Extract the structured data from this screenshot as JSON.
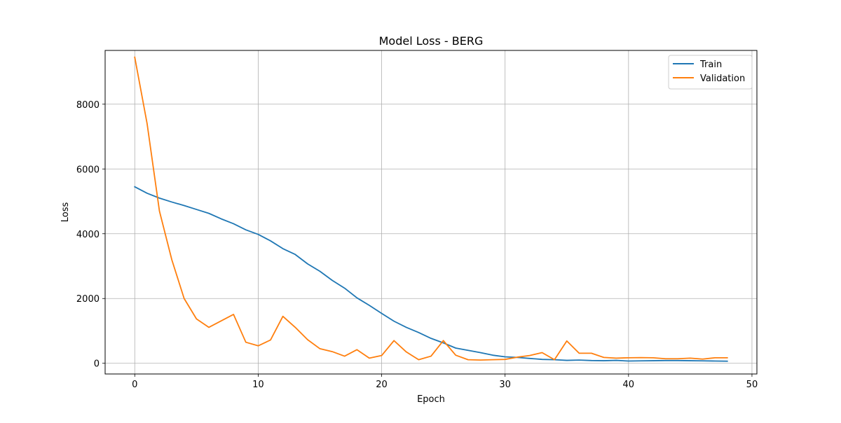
{
  "chart_data": {
    "type": "line",
    "title": "Model Loss - BERG",
    "xlabel": "Epoch",
    "ylabel": "Loss",
    "xlim": [
      -2.4,
      50.4
    ],
    "ylim": [
      -330,
      9660
    ],
    "xticks": [
      0,
      10,
      20,
      30,
      40,
      50
    ],
    "yticks": [
      0,
      2000,
      4000,
      6000,
      8000
    ],
    "grid": true,
    "legend_position": "top-right",
    "series": [
      {
        "name": "Train",
        "color": "#1f77b4",
        "x": [
          0,
          1,
          2,
          3,
          4,
          5,
          6,
          7,
          8,
          9,
          10,
          11,
          12,
          13,
          14,
          15,
          16,
          17,
          18,
          19,
          20,
          21,
          22,
          23,
          24,
          25,
          26,
          27,
          28,
          29,
          30,
          31,
          32,
          33,
          34,
          35,
          36,
          37,
          38,
          39,
          40,
          41,
          42,
          43,
          44,
          45,
          46,
          47,
          48
        ],
        "values": [
          5450,
          5250,
          5100,
          4980,
          4870,
          4750,
          4630,
          4460,
          4310,
          4120,
          3980,
          3780,
          3540,
          3360,
          3070,
          2840,
          2560,
          2320,
          2020,
          1790,
          1540,
          1300,
          1110,
          950,
          770,
          630,
          470,
          400,
          330,
          250,
          200,
          180,
          150,
          120,
          110,
          90,
          100,
          85,
          80,
          90,
          70,
          75,
          80,
          85,
          85,
          80,
          75,
          70,
          65
        ],
        "linewidth": 1.5
      },
      {
        "name": "Validation",
        "color": "#ff7f0e",
        "x": [
          0,
          1,
          2,
          3,
          4,
          5,
          6,
          7,
          8,
          9,
          10,
          11,
          12,
          13,
          14,
          15,
          16,
          17,
          18,
          19,
          20,
          21,
          22,
          23,
          24,
          25,
          26,
          27,
          28,
          29,
          30,
          31,
          32,
          33,
          34,
          35,
          36,
          37,
          38,
          39,
          40,
          41,
          42,
          43,
          44,
          45,
          46,
          47,
          48
        ],
        "values": [
          9450,
          7400,
          4700,
          3200,
          2000,
          1370,
          1110,
          1310,
          1510,
          650,
          540,
          720,
          1450,
          1110,
          730,
          450,
          360,
          220,
          420,
          160,
          240,
          700,
          350,
          110,
          220,
          700,
          250,
          110,
          100,
          110,
          120,
          190,
          240,
          330,
          110,
          690,
          310,
          310,
          180,
          160,
          170,
          175,
          170,
          140,
          140,
          160,
          130,
          170,
          170
        ],
        "linewidth": 1.5
      }
    ]
  }
}
